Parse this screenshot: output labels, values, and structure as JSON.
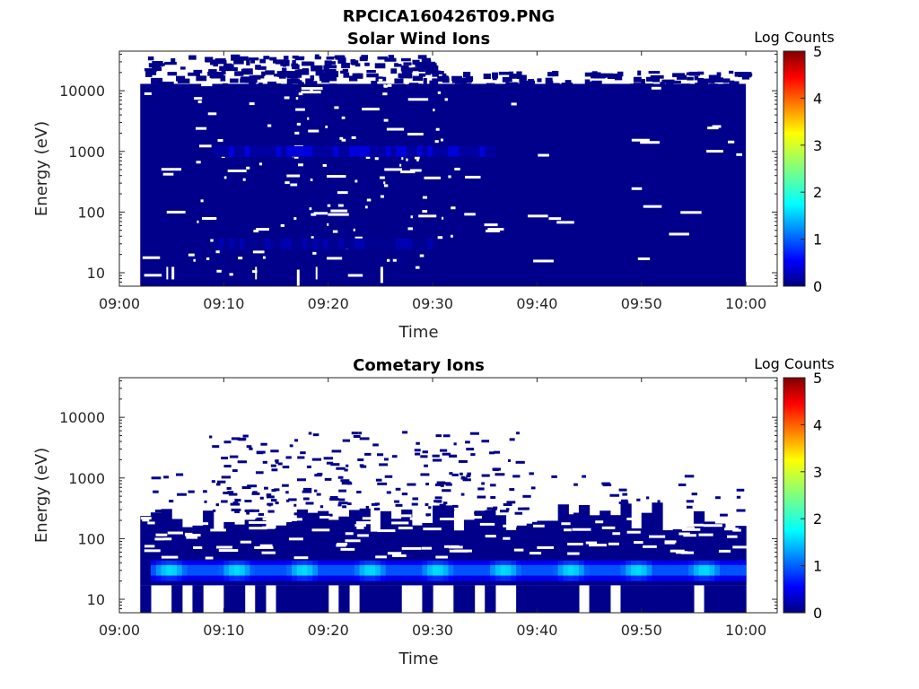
{
  "figure": {
    "title": "RPCICA160426T09.PNG"
  },
  "chart_data": [
    {
      "type": "heatmap",
      "title": "Solar Wind Ions",
      "xlabel": "Time",
      "ylabel": "Energy (eV)",
      "x_ticks": [
        "09:00",
        "09:10",
        "09:20",
        "09:30",
        "09:40",
        "09:50",
        "10:00"
      ],
      "y_ticks": [
        "10",
        "100",
        "1000",
        "10000"
      ],
      "y_scale": "log",
      "ylim": [
        6,
        45000
      ],
      "xlim": [
        "09:00",
        "10:03"
      ],
      "data_start": "09:02",
      "data_end": "10:00",
      "colorbar": {
        "label": "Log Counts",
        "min": 0,
        "max": 5,
        "ticks": [
          "0",
          "1",
          "2",
          "3",
          "4",
          "5"
        ],
        "colormap": "jet"
      },
      "background_level": 0.05,
      "bright_bands": [
        {
          "energy_ev": 1000,
          "level": 0.45,
          "t_start": "09:09",
          "t_end": "09:36"
        },
        {
          "energy_ev": 30,
          "level": 0.25,
          "t_start": "09:09",
          "t_end": "09:30"
        }
      ]
    },
    {
      "type": "heatmap",
      "title": "Cometary Ions",
      "xlabel": "Time",
      "ylabel": "Energy (eV)",
      "x_ticks": [
        "09:00",
        "09:10",
        "09:20",
        "09:30",
        "09:40",
        "09:50",
        "10:00"
      ],
      "y_ticks": [
        "10",
        "100",
        "1000",
        "10000"
      ],
      "y_scale": "log",
      "ylim": [
        6,
        45000
      ],
      "xlim": [
        "09:00",
        "10:03"
      ],
      "data_start": "09:02",
      "data_end": "10:00",
      "colorbar": {
        "label": "Log Counts",
        "min": 0,
        "max": 5,
        "ticks": [
          "0",
          "1",
          "2",
          "3",
          "4",
          "5"
        ],
        "colormap": "jet"
      },
      "background_level": 0.05,
      "bright_bands": [
        {
          "energy_ev": 30,
          "level": 1.7,
          "t_start": "09:03",
          "t_end": "10:00",
          "periodic_peaks": true
        }
      ]
    }
  ]
}
